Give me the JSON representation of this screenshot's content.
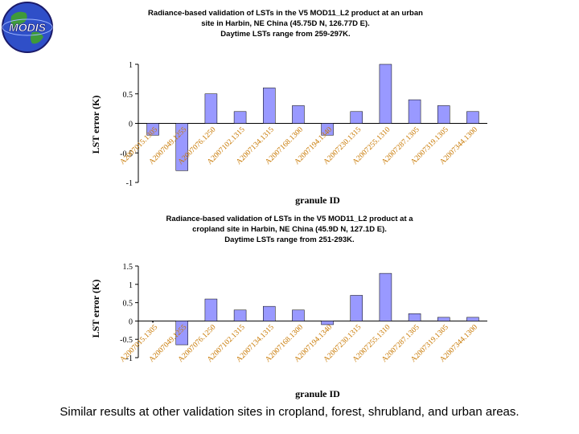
{
  "logo": {
    "text": "MODIS",
    "colors": {
      "globe": "#2f4fc8",
      "land": "#3f9a3a",
      "text": "#ffffff",
      "outline": "#1a1a6a"
    }
  },
  "chart_data": [
    {
      "type": "bar",
      "title": [
        "Radiance-based validation of LSTs in the V5 MOD11_L2  product at an urban",
        "site in Harbin, NE China (45.75D N, 126.77D E).",
        "Daytime LSTs range from 259-297K."
      ],
      "xlabel": "granule ID",
      "ylabel": "LST error (K)",
      "ylim": [
        -1,
        1
      ],
      "yticks": [
        1,
        0.5,
        0,
        -0.5,
        -1
      ],
      "grid": false,
      "bar_color": "#9999ff",
      "categories": [
        "A2007015.1305",
        "A2007049.1255",
        "A2007076.1250",
        "A2007102.1315",
        "A2007134.1315",
        "A2007168.1300",
        "A2007194.1340",
        "A2007230.1315",
        "A2007255.1310",
        "A2007287.1305",
        "A2007319.1305",
        "A2007344.1300"
      ],
      "values": [
        -0.2,
        -0.8,
        0.5,
        0.2,
        0.6,
        0.3,
        -0.2,
        0.2,
        1.0,
        0.4,
        0.3,
        0.2
      ]
    },
    {
      "type": "bar",
      "title": [
        "Radiance-based validation of LSTs in the V5 MOD11_L2  product at a",
        "cropland site in Harbin, NE China (45.9D N, 127.1D E).",
        "Daytime LSTs range from 251-293K."
      ],
      "xlabel": "granule ID",
      "ylabel": "LST error (K)",
      "ylim": [
        -1,
        1.5
      ],
      "yticks": [
        1.5,
        1,
        0.5,
        0,
        -0.5,
        -1
      ],
      "grid": false,
      "bar_color": "#9999ff",
      "categories": [
        "A2007015.1305",
        "A2007049.1255",
        "A2007076.1250",
        "A2007102.1315",
        "A2007134.1315",
        "A2007168.1300",
        "A2007194.1340",
        "A2007230.1315",
        "A2007255.1310",
        "A2007287.1305",
        "A2007319.1305",
        "A2007344.1300"
      ],
      "values": [
        0,
        -0.65,
        0.6,
        0.3,
        0.4,
        0.3,
        -0.1,
        0.7,
        1.3,
        0.2,
        0.1,
        0.1
      ]
    }
  ],
  "caption": "Similar results at other validation sites in cropland, forest, shrubland, and urban areas."
}
